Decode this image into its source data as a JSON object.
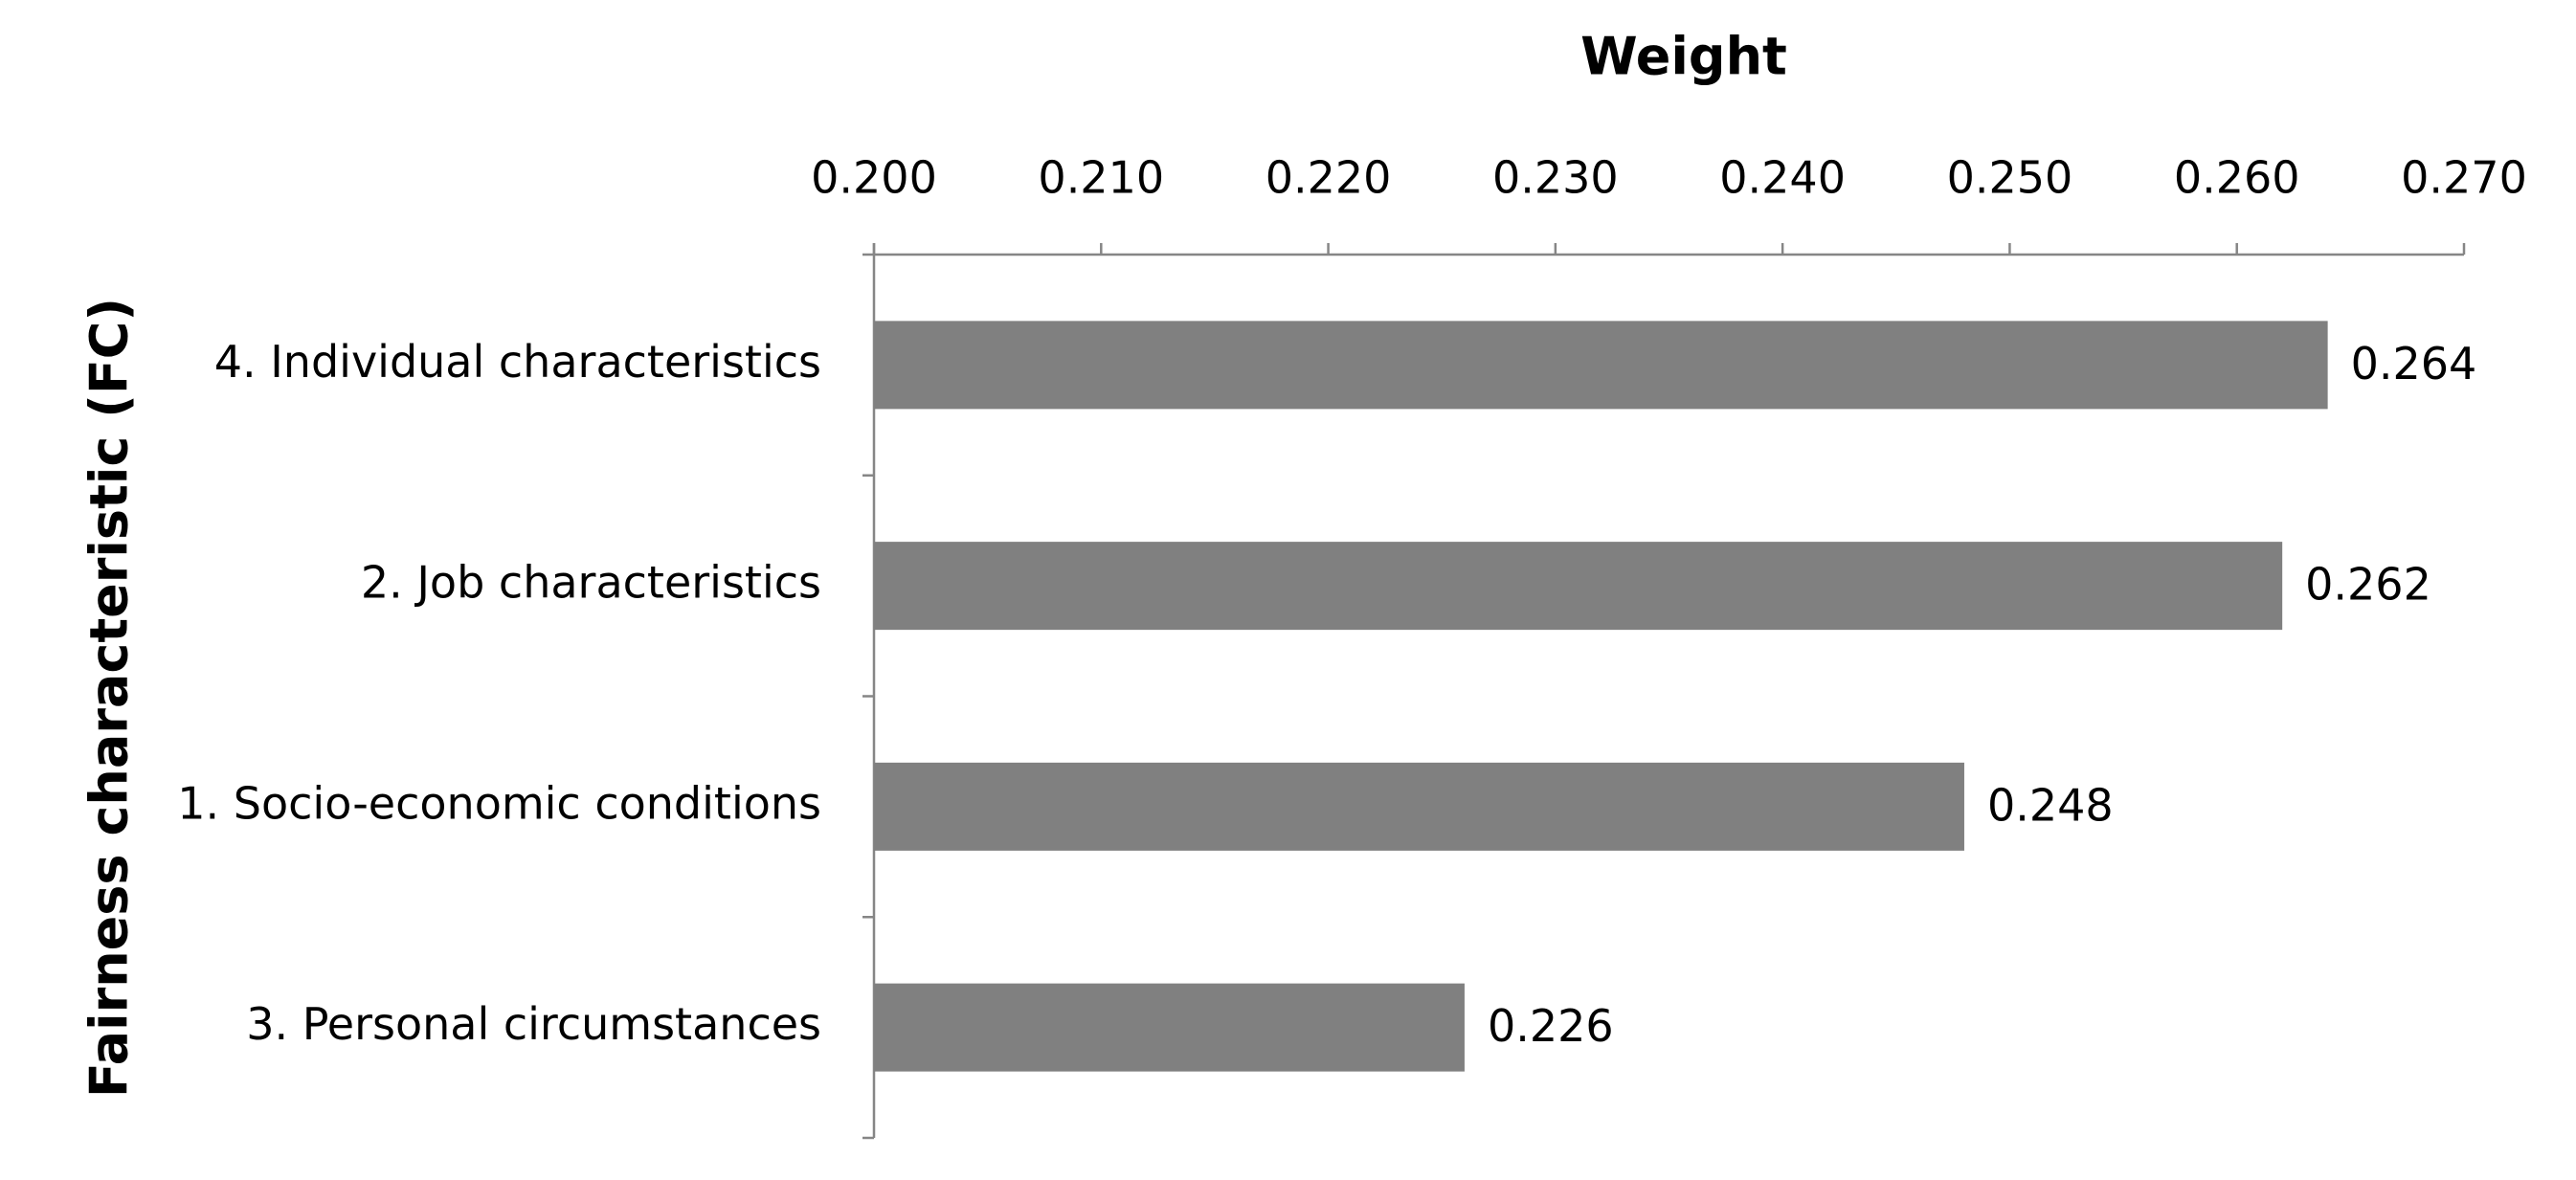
{
  "chart_data": {
    "type": "barh",
    "x_label": "Weight",
    "y_label": "Fairness characteristic (FC)",
    "categories": [
      "4. Individual characteristics",
      "2. Job characteristics",
      "1. Socio-economic conditions",
      "3. Personal circumstances"
    ],
    "values": [
      0.264,
      0.262,
      0.248,
      0.226
    ],
    "color": "#808080",
    "xlim": [
      0.2,
      0.27
    ],
    "xticks": [
      {
        "value": 0.2,
        "label": "0.200"
      },
      {
        "value": 0.21,
        "label": "0.210"
      },
      {
        "value": 0.22,
        "label": "0.220"
      },
      {
        "value": 0.23,
        "label": "0.230"
      },
      {
        "value": 0.24,
        "label": "0.240"
      },
      {
        "value": 0.25,
        "label": "0.250"
      },
      {
        "value": 0.26,
        "label": "0.260"
      },
      {
        "value": 0.27,
        "label": "0.270"
      }
    ],
    "grid": false
  }
}
